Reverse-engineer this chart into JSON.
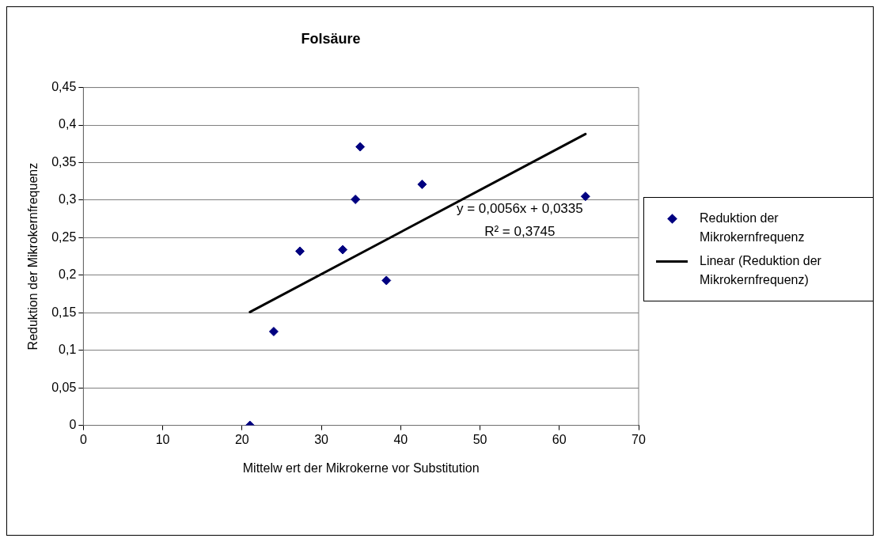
{
  "chart_data": {
    "type": "scatter",
    "title": "Folsäure",
    "xlabel": "Mittelw ert der Mikrokerne vor Substitution",
    "ylabel": "Reduktion der Mikrokernfrequenz",
    "x": [
      21.0,
      24.0,
      27.3,
      32.7,
      34.3,
      34.9,
      38.2,
      42.7,
      63.3
    ],
    "series": [
      {
        "name": "Reduktion der Mikrokernfrequenz",
        "color": "#000080",
        "values": [
          0,
          0.125,
          0.232,
          0.234,
          0.301,
          0.371,
          0.193,
          0.321,
          0.305
        ],
        "marker": "diamond"
      },
      {
        "name": "Linear (Reduktion der Mikrokernfrequenz)",
        "type": "line",
        "color": "#000000",
        "x": [
          21.0,
          63.3
        ],
        "values": [
          0.151,
          0.388
        ],
        "marker": "none",
        "line_style": "solid"
      }
    ],
    "annotations": [
      "y = 0,0056x + 0,0335",
      "R² = 0,3745"
    ],
    "xlim": [
      0,
      70
    ],
    "xticks": [
      0,
      10,
      20,
      30,
      40,
      50,
      60,
      70
    ],
    "ylim": [
      0,
      0.45
    ],
    "yticks": [
      {
        "value": 0,
        "label": "0"
      },
      {
        "value": 0.05,
        "label": "0,05"
      },
      {
        "value": 0.1,
        "label": "0,1"
      },
      {
        "value": 0.15,
        "label": "0,15"
      },
      {
        "value": 0.2,
        "label": "0,2"
      },
      {
        "value": 0.25,
        "label": "0,25"
      },
      {
        "value": 0.3,
        "label": "0,3"
      },
      {
        "value": 0.35,
        "label": "0,35"
      },
      {
        "value": 0.4,
        "label": "0,4"
      },
      {
        "value": 0.45,
        "label": "0,45"
      }
    ],
    "grid": "y",
    "legend": "right"
  }
}
